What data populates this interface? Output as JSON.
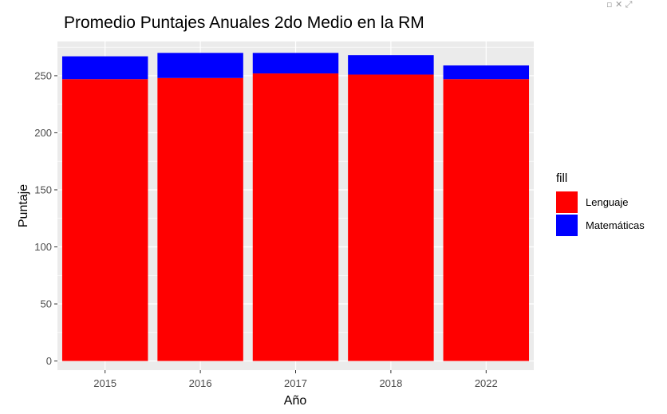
{
  "chart_data": {
    "type": "bar",
    "stacked": true,
    "title": "Promedio Puntajes Anuales 2do Medio en la RM",
    "xlabel": "Año",
    "ylabel": "Puntaje",
    "categories": [
      "2015",
      "2016",
      "2017",
      "2018",
      "2022"
    ],
    "series": [
      {
        "name": "Lenguaje",
        "color": "#ff0000",
        "values": [
          247,
          248,
          252,
          251,
          247
        ]
      },
      {
        "name": "Matemáticas",
        "color": "#0000ff",
        "values": [
          20,
          22,
          18,
          17,
          12
        ]
      }
    ],
    "ylim": [
      -8,
      280
    ],
    "yticks": [
      0,
      50,
      100,
      150,
      200,
      250
    ],
    "grid": true,
    "legend": {
      "title": "fill",
      "placement": "right"
    },
    "panel_background": "#ebebeb",
    "gridline_color": "#ffffff"
  }
}
